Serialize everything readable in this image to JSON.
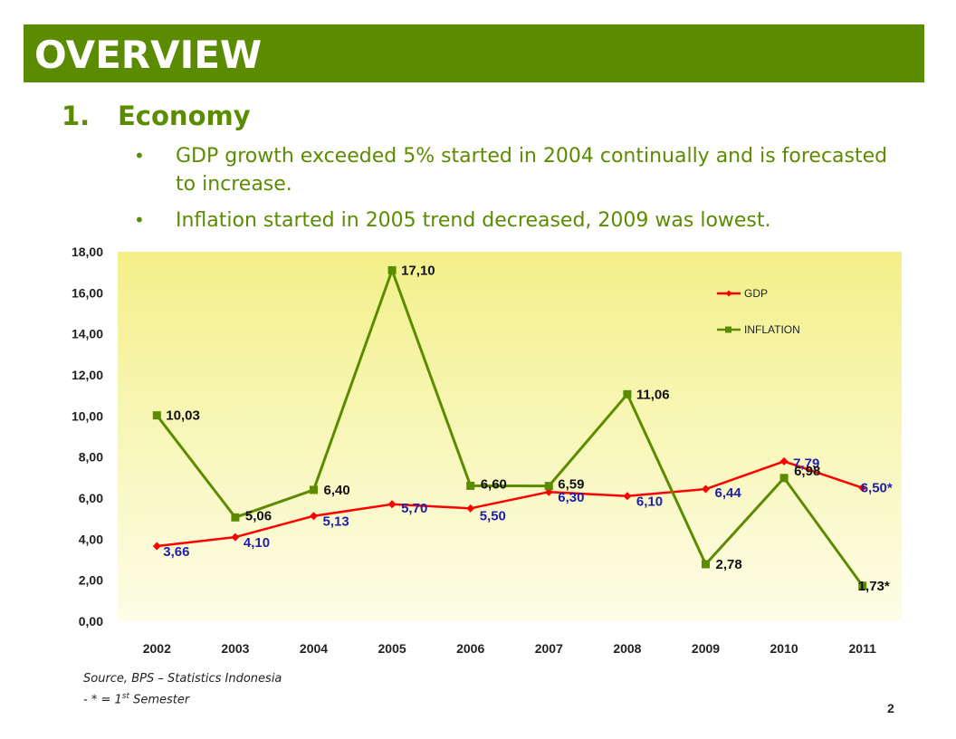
{
  "header": {
    "title": "OVERVIEW"
  },
  "section": {
    "number": "1.",
    "title": "Economy"
  },
  "bullets": [
    {
      "marker": "•",
      "text": "GDP growth exceeded 5% started in 2004 continually and is forecasted to increase."
    },
    {
      "marker": "•",
      "text": "Inflation started in 2005 trend decreased, 2009 was lowest."
    }
  ],
  "chart_data": {
    "type": "line",
    "categories": [
      "2002",
      "2003",
      "2004",
      "2005",
      "2006",
      "2007",
      "2008",
      "2009",
      "2010",
      "2011"
    ],
    "ylim": [
      0,
      18
    ],
    "yticks": [
      "0,00",
      "2,00",
      "4,00",
      "6,00",
      "8,00",
      "10,00",
      "12,00",
      "14,00",
      "16,00",
      "18,00"
    ],
    "legend_position": "top-right",
    "grid": false,
    "series": [
      {
        "name": "GDP",
        "color": "#ff0000",
        "marker": "diamond",
        "label_color": "#1f1fa8",
        "values": [
          3.66,
          4.1,
          5.13,
          5.7,
          5.5,
          6.3,
          6.1,
          6.44,
          7.79,
          6.5
        ],
        "labels": [
          "3,66",
          "4,10",
          "5,13",
          "5,70",
          "5,50",
          "6,30",
          "6,10",
          "6,44",
          "7,79",
          "6,50*"
        ]
      },
      {
        "name": "INFLATION",
        "color": "#5b8c00",
        "marker": "square",
        "label_color": "#111111",
        "values": [
          10.03,
          5.06,
          6.4,
          17.1,
          6.6,
          6.59,
          11.06,
          2.78,
          6.98,
          1.73
        ],
        "labels": [
          "10,03",
          "5,06",
          "6,40",
          "17,10",
          "6,60",
          "6,59",
          "11,06",
          "2,78",
          "6,98",
          "1,73*"
        ]
      }
    ]
  },
  "footer": {
    "source": "Source, BPS – Statistics Indonesia",
    "note_prefix": "- * = 1",
    "note_sup": "st",
    "note_suffix": " Semester",
    "page_number": "2"
  }
}
